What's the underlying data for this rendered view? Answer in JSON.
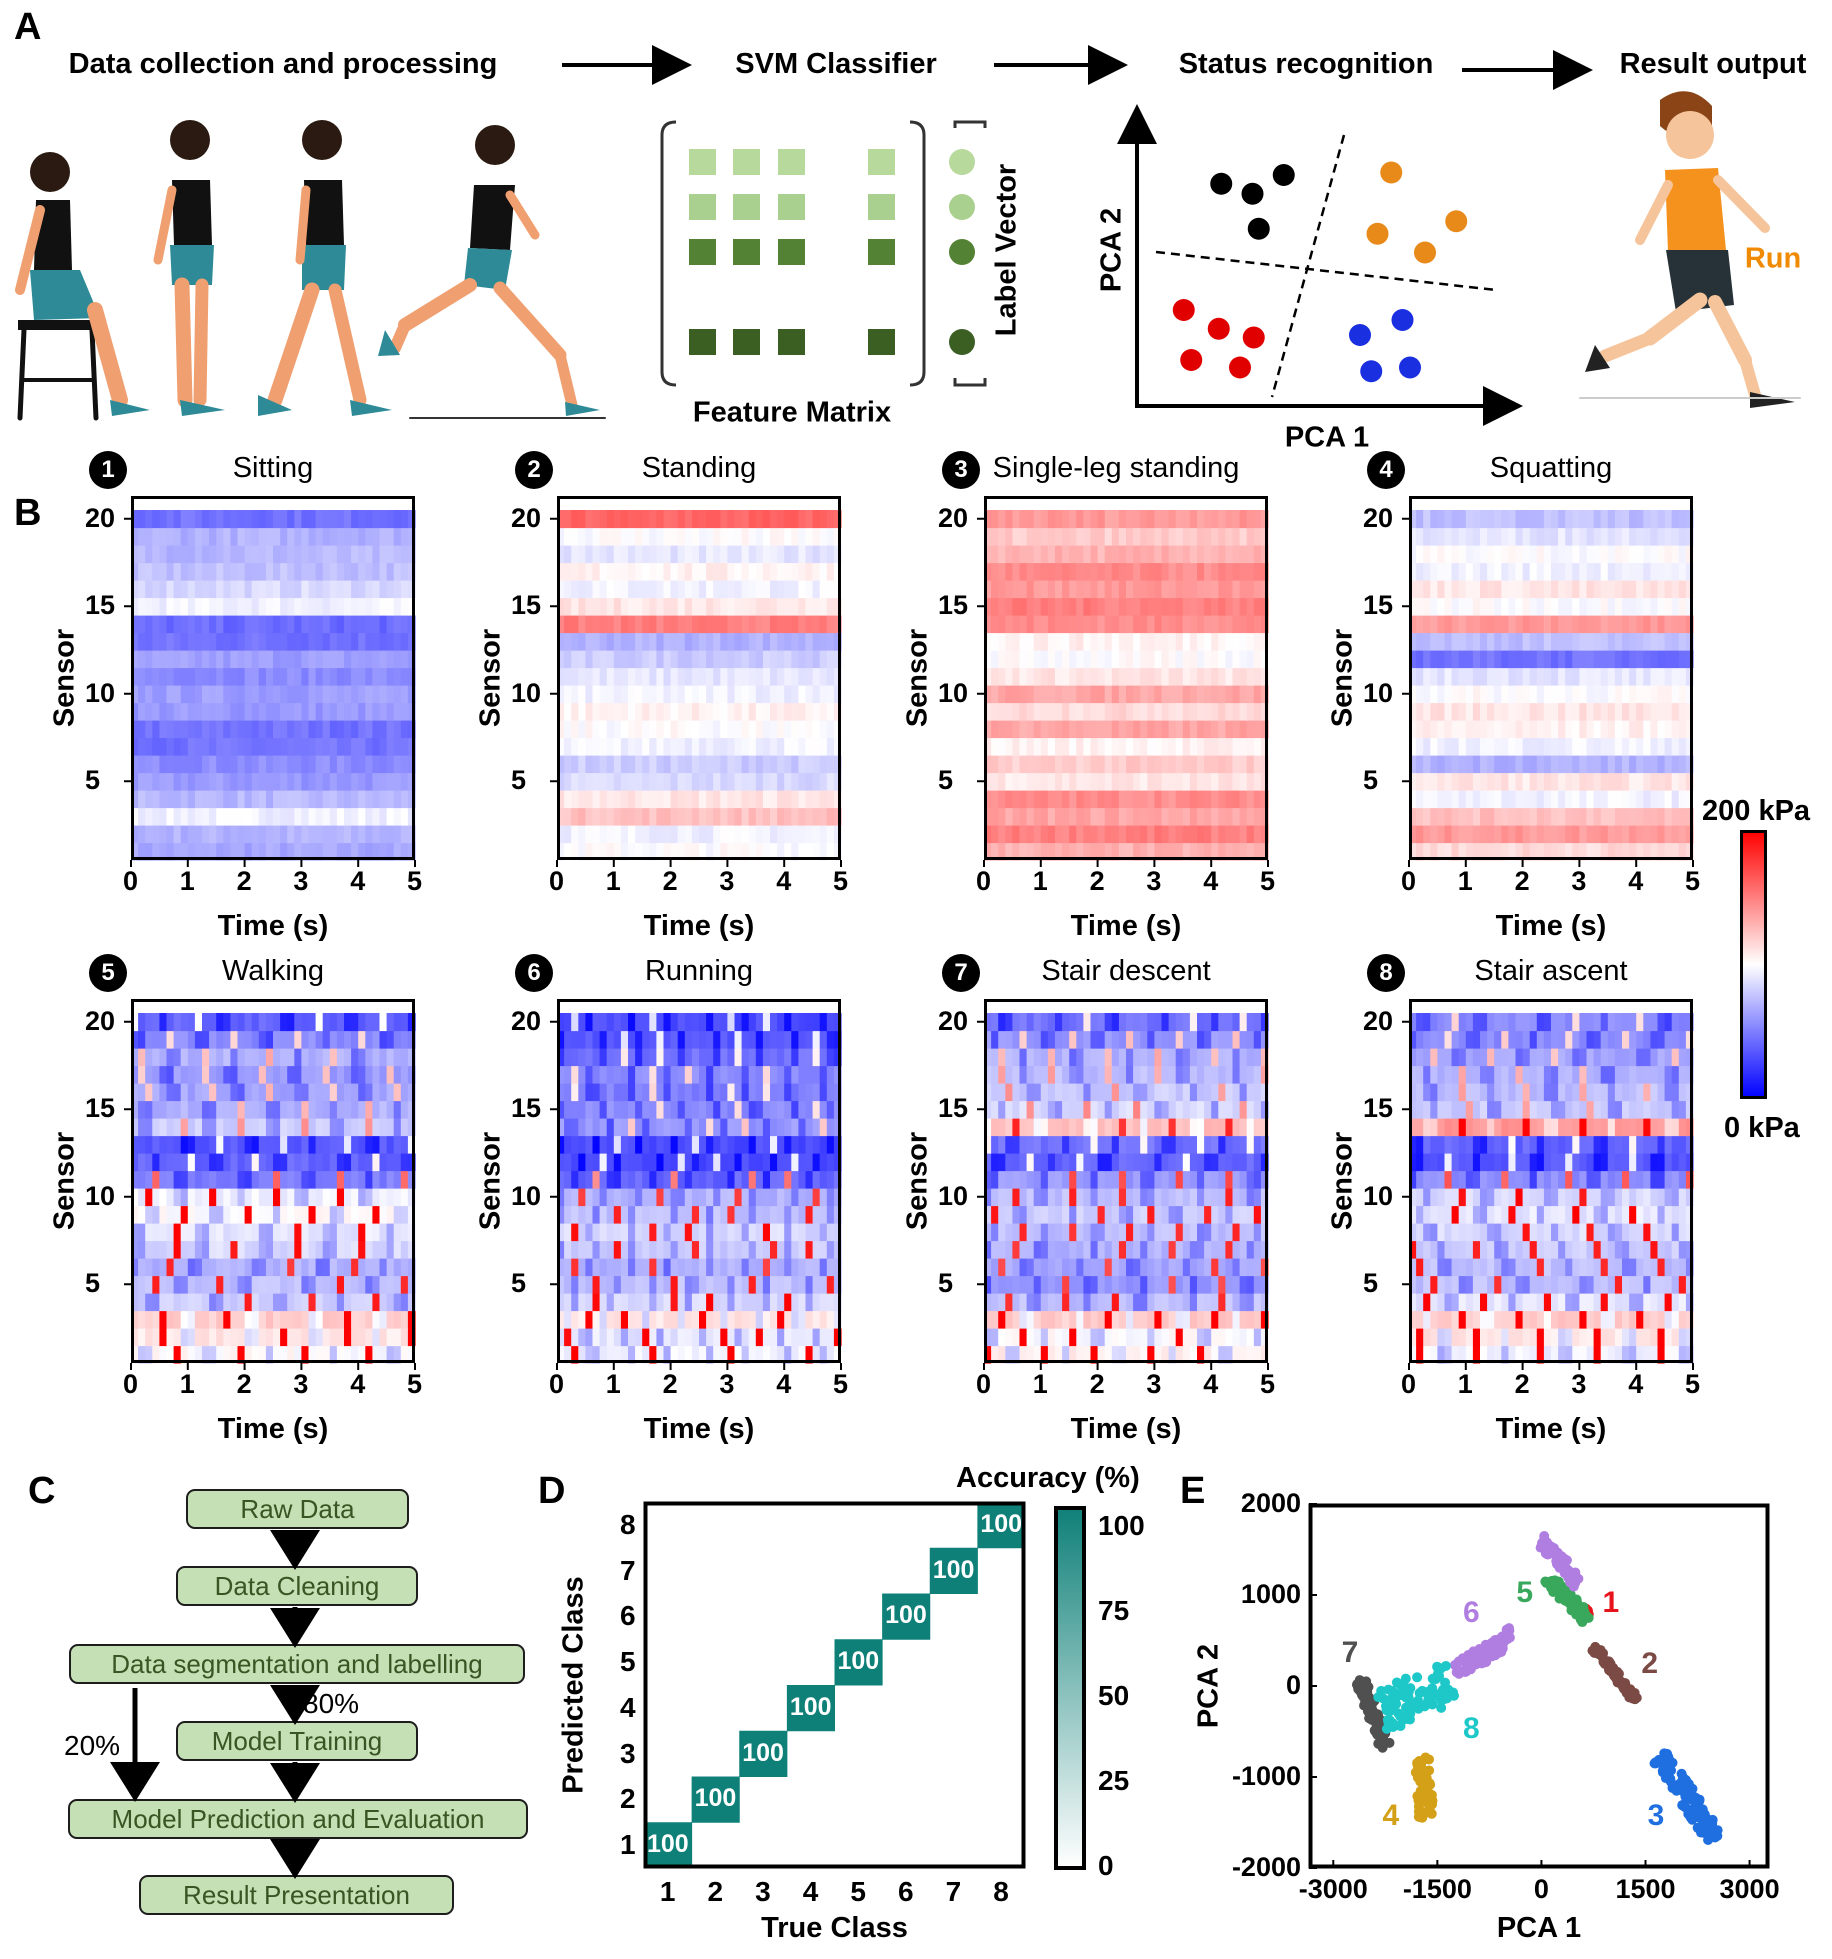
{
  "panel_labels": {
    "a": "A",
    "b": "B",
    "c": "C",
    "d": "D",
    "e": "E"
  },
  "panel_a": {
    "steps": [
      "Data collection and processing",
      "SVM Classifier",
      "Status recognition",
      "Result output"
    ],
    "feature_matrix_label": "Feature Matrix",
    "label_vector_label": "Label Vector",
    "feature_colors": [
      "#b8d99c",
      "#a9d08e",
      "#548235",
      "#3b5e23"
    ],
    "pca_schematic": {
      "xlabel": "PCA 1",
      "ylabel": "PCA 2",
      "cluster_colors": [
        "#000000",
        "#e88a1a",
        "#e00000",
        "#1a2fe0"
      ]
    },
    "result_text": "Run",
    "result_color": "#f08a00"
  },
  "colorbar_b": {
    "max_label": "200 kPa",
    "min_label": "0 kPa"
  },
  "chart_data": [
    {
      "type": "heatmap",
      "id": "B",
      "xlabel": "Time (s)",
      "ylabel": "Sensor",
      "xticks": [
        "0",
        "1",
        "2",
        "3",
        "4",
        "5"
      ],
      "yticks": [
        "5",
        "10",
        "15",
        "20"
      ],
      "xlim": [
        0,
        5
      ],
      "color_range_kPa": [
        0,
        200
      ],
      "colormap": [
        "#0000ff",
        "#ffffff",
        "#ff0000"
      ],
      "panels": [
        {
          "number": "1",
          "title": "Sitting",
          "row_means_kPa": [
            65,
            70,
            95,
            72,
            60,
            55,
            45,
            45,
            60,
            62,
            55,
            62,
            45,
            42,
            95,
            85,
            75,
            72,
            70,
            45
          ],
          "period_s": null
        },
        {
          "number": "2",
          "title": "Standing",
          "row_means_kPa": [
            100,
            95,
            125,
            110,
            85,
            80,
            95,
            100,
            105,
            95,
            90,
            80,
            70,
            150,
            110,
            95,
            105,
            90,
            100,
            160
          ],
          "period_s": null
        },
        {
          "number": "3",
          "title": "Single-leg standing",
          "row_means_kPa": [
            130,
            150,
            135,
            145,
            110,
            120,
            105,
            135,
            115,
            135,
            110,
            100,
            105,
            145,
            150,
            140,
            145,
            130,
            120,
            140
          ],
          "period_s": null
        },
        {
          "number": "4",
          "title": "Squatting",
          "row_means_kPa": [
            115,
            140,
            125,
            95,
            110,
            70,
            95,
            105,
            110,
            100,
            90,
            45,
            75,
            140,
            100,
            110,
            95,
            100,
            90,
            75
          ],
          "period_s": null
        },
        {
          "number": "5",
          "title": "Walking",
          "row_means_kPa": [
            100,
            110,
            120,
            80,
            75,
            70,
            85,
            90,
            100,
            95,
            50,
            40,
            35,
            80,
            70,
            65,
            60,
            70,
            55,
            40
          ],
          "period_s": 1.1
        },
        {
          "number": "6",
          "title": "Running",
          "row_means_kPa": [
            95,
            90,
            110,
            85,
            75,
            70,
            80,
            85,
            75,
            70,
            40,
            30,
            30,
            60,
            55,
            50,
            55,
            45,
            35,
            30
          ],
          "period_s": 0.68
        },
        {
          "number": "7",
          "title": "Stair descent",
          "row_means_kPa": [
            105,
            100,
            120,
            75,
            60,
            65,
            70,
            75,
            80,
            75,
            60,
            40,
            45,
            125,
            85,
            80,
            75,
            70,
            60,
            45
          ],
          "period_s": 0.93
        },
        {
          "number": "8",
          "title": "Stair ascent",
          "row_means_kPa": [
            95,
            110,
            120,
            90,
            75,
            75,
            80,
            85,
            90,
            85,
            55,
            35,
            40,
            140,
            80,
            75,
            70,
            65,
            55,
            55
          ],
          "period_s": 1.07
        }
      ]
    },
    {
      "type": "heatmap",
      "id": "D",
      "title": "Accuracy (%)",
      "xlabel": "True Class",
      "ylabel": "Predicted Class",
      "categories": [
        "1",
        "2",
        "3",
        "4",
        "5",
        "6",
        "7",
        "8"
      ],
      "diagonal_values": [
        100,
        100,
        100,
        100,
        100,
        100,
        100,
        100
      ],
      "off_diagonal_value": 0,
      "colorbar_ticks": [
        "0",
        "25",
        "50",
        "75",
        "100"
      ],
      "color": "#0f8078"
    },
    {
      "type": "scatter",
      "id": "E",
      "xlabel": "PCA 1",
      "ylabel": "PCA 2",
      "xlim": [
        -3350,
        3280
      ],
      "ylim": [
        -2000,
        2000
      ],
      "xticks": [
        "-3000",
        "-1500",
        "0",
        "1500",
        "3000"
      ],
      "yticks": [
        "2000",
        "1000",
        "0",
        "-1000",
        "-2000"
      ],
      "clusters": [
        {
          "label": "1",
          "color": "#e8141b",
          "from": [
            600,
            860
          ],
          "to": [
            700,
            780
          ],
          "width": 60
        },
        {
          "label": "2",
          "color": "#7b4a44",
          "from": [
            765,
            420
          ],
          "to": [
            1355,
            -150
          ],
          "width": 90
        },
        {
          "label": "3",
          "color": "#1f6fe0",
          "from": [
            1710,
            -770
          ],
          "to": [
            2510,
            -1685
          ],
          "width": 230
        },
        {
          "label": "4",
          "color": "#d4a017",
          "from": [
            -1720,
            -770
          ],
          "to": [
            -1660,
            -1450
          ],
          "width": 220
        },
        {
          "label": "5",
          "color": "#3aa85c",
          "from": [
            50,
            1210
          ],
          "to": [
            675,
            730
          ],
          "width": 150
        },
        {
          "label": "6",
          "color": "#b07ee0",
          "from": [
            0,
            1610
          ],
          "to": [
            530,
            1135
          ],
          "width": 160
        },
        {
          "label": "6",
          "color": "#b07ee0",
          "from": [
            -1250,
            150
          ],
          "to": [
            -420,
            550
          ],
          "width": 200
        },
        {
          "label": "7",
          "color": "#505050",
          "from": [
            -2610,
            70
          ],
          "to": [
            -2250,
            -660
          ],
          "width": 160
        },
        {
          "label": "8",
          "color": "#1ec8c8",
          "from": [
            -2300,
            -300
          ],
          "to": [
            -1300,
            50
          ],
          "width": 500
        }
      ]
    }
  ],
  "flowchart": {
    "raw_data": "Raw Data",
    "data_cleaning": "Data Cleaning",
    "segmentation": "Data segmentation and labelling",
    "training": "Model Training",
    "prediction": "Model Prediction and Evaluation",
    "result": "Result Presentation",
    "train_split": "80%",
    "test_split": "20%"
  }
}
